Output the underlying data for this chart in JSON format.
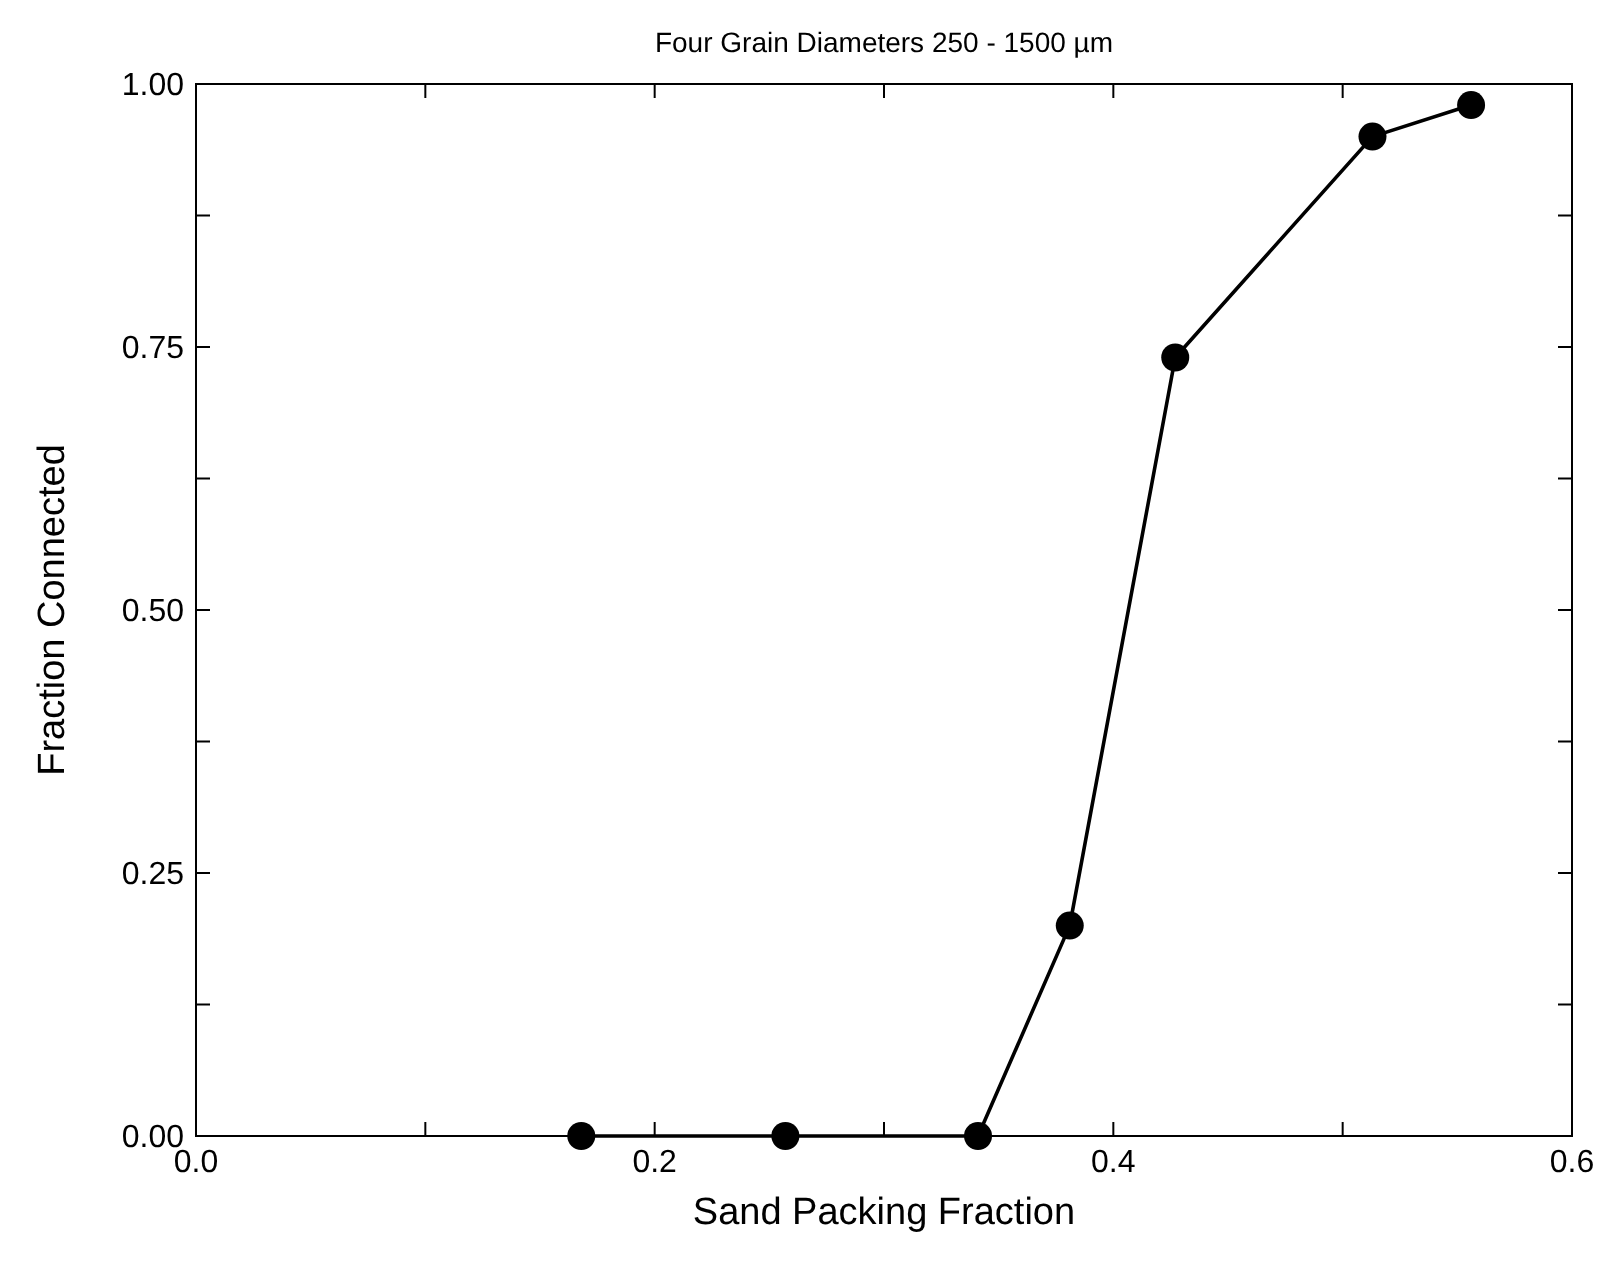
{
  "chart_data": {
    "type": "line",
    "title": "Four Grain Diameters 250 - 1500 µm",
    "xlabel": "Sand Packing Fraction",
    "ylabel": "Fraction Connected",
    "x": [
      0.168,
      0.257,
      0.341,
      0.381,
      0.427,
      0.513,
      0.556
    ],
    "series": [
      {
        "color": "#000000",
        "values": [
          0,
          0,
          0,
          0.2,
          0.74,
          0.95,
          0.98
        ]
      }
    ],
    "xlim": [
      0,
      0.6
    ],
    "ylim": [
      0,
      1
    ],
    "xticks": [
      {
        "value": 0,
        "label": "0.0"
      },
      {
        "value": 0.1,
        "label": null
      },
      {
        "value": 0.2,
        "label": "0.2"
      },
      {
        "value": 0.3,
        "label": null
      },
      {
        "value": 0.4,
        "label": "0.4"
      },
      {
        "value": 0.5,
        "label": null
      },
      {
        "value": 0.6,
        "label": "0.6"
      }
    ],
    "yticks": [
      {
        "value": 0,
        "label": "0.00"
      },
      {
        "value": 0.125,
        "label": null
      },
      {
        "value": 0.25,
        "label": "0.25"
      },
      {
        "value": 0.375,
        "label": null
      },
      {
        "value": 0.5,
        "label": "0.50"
      },
      {
        "value": 0.625,
        "label": null
      },
      {
        "value": 0.75,
        "label": "0.75"
      },
      {
        "value": 0.875,
        "label": null
      },
      {
        "value": 1,
        "label": "1.00"
      }
    ],
    "grid": false,
    "marker": "circle",
    "line_style": "solid"
  }
}
